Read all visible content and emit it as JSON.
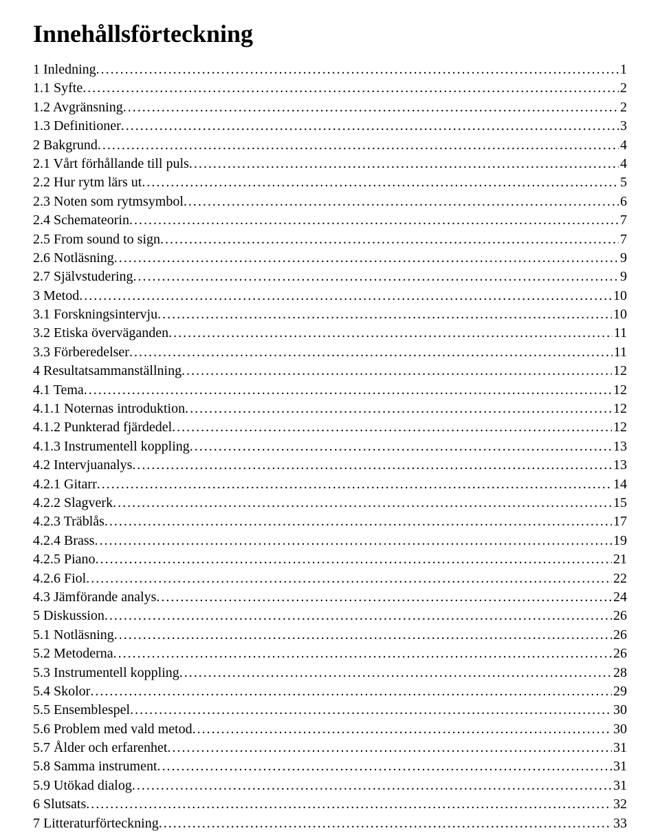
{
  "title": "Innehållsförteckning",
  "entries": [
    {
      "label": "1 Inledning",
      "page": "1",
      "indent": 1
    },
    {
      "label": "1.1 Syfte",
      "page": "2",
      "indent": 2
    },
    {
      "label": "1.2 Avgränsning",
      "page": "2",
      "indent": 2
    },
    {
      "label": "1.3 Definitioner",
      "page": "3",
      "indent": 2
    },
    {
      "label": "2 Bakgrund",
      "page": "4",
      "indent": 1
    },
    {
      "label": "2.1 Vårt förhållande till puls",
      "page": "4",
      "indent": 2
    },
    {
      "label": "2.2 Hur rytm lärs ut",
      "page": "5",
      "indent": 2
    },
    {
      "label": "2.3 Noten som rytmsymbol",
      "page": "6",
      "indent": 2
    },
    {
      "label": "2.4 Schemateorin",
      "page": "7",
      "indent": 2
    },
    {
      "label": "2.5 From sound to sign",
      "page": "7",
      "indent": 2
    },
    {
      "label": "2.6 Notläsning",
      "page": "9",
      "indent": 2
    },
    {
      "label": "2.7 Självstudering",
      "page": "9",
      "indent": 2
    },
    {
      "label": "3 Metod",
      "page": "10",
      "indent": 1
    },
    {
      "label": "3.1 Forskningsintervju",
      "page": "10",
      "indent": 2
    },
    {
      "label": "3.2 Etiska överväganden",
      "page": "11",
      "indent": 2
    },
    {
      "label": "3.3 Förberedelser",
      "page": "11",
      "indent": 2
    },
    {
      "label": "4 Resultatsammanställning",
      "page": "12",
      "indent": 1
    },
    {
      "label": "4.1 Tema",
      "page": "12",
      "indent": 2
    },
    {
      "label": "4.1.1 Noternas introduktion",
      "page": "12",
      "indent": 2
    },
    {
      "label": "4.1.2 Punkterad fjärdedel",
      "page": "12",
      "indent": 2
    },
    {
      "label": "4.1.3 Instrumentell koppling",
      "page": "13",
      "indent": 2
    },
    {
      "label": "4.2 Intervjuanalys",
      "page": "13",
      "indent": 2
    },
    {
      "label": "4.2.1 Gitarr",
      "page": "14",
      "indent": 2
    },
    {
      "label": "4.2.2 Slagverk",
      "page": "15",
      "indent": 2
    },
    {
      "label": "4.2.3 Träblås",
      "page": "17",
      "indent": 2
    },
    {
      "label": "4.2.4 Brass",
      "page": "19",
      "indent": 2
    },
    {
      "label": "4.2.5 Piano",
      "page": "21",
      "indent": 2
    },
    {
      "label": "4.2.6 Fiol",
      "page": "22",
      "indent": 2
    },
    {
      "label": "4.3 Jämförande analys",
      "page": "24",
      "indent": 2
    },
    {
      "label": "5 Diskussion",
      "page": "26",
      "indent": 1
    },
    {
      "label": "5.1 Notläsning",
      "page": "26",
      "indent": 2
    },
    {
      "label": "5.2 Metoderna",
      "page": "26",
      "indent": 2
    },
    {
      "label": "5.3 Instrumentell koppling",
      "page": "28",
      "indent": 2
    },
    {
      "label": "5.4 Skolor",
      "page": "29",
      "indent": 2
    },
    {
      "label": "5.5 Ensemblespel",
      "page": "30",
      "indent": 2
    },
    {
      "label": "5.6 Problem med vald metod",
      "page": "30",
      "indent": 2
    },
    {
      "label": "5.7 Ålder och erfarenhet",
      "page": "31",
      "indent": 2
    },
    {
      "label": "5.8 Samma instrument",
      "page": "31",
      "indent": 2
    },
    {
      "label": "5.9 Utökad dialog",
      "page": "31",
      "indent": 2
    },
    {
      "label": "6 Slutsats",
      "page": "32",
      "indent": 1
    },
    {
      "label": "7 Litteraturförteckning",
      "page": "33",
      "indent": 1
    }
  ]
}
